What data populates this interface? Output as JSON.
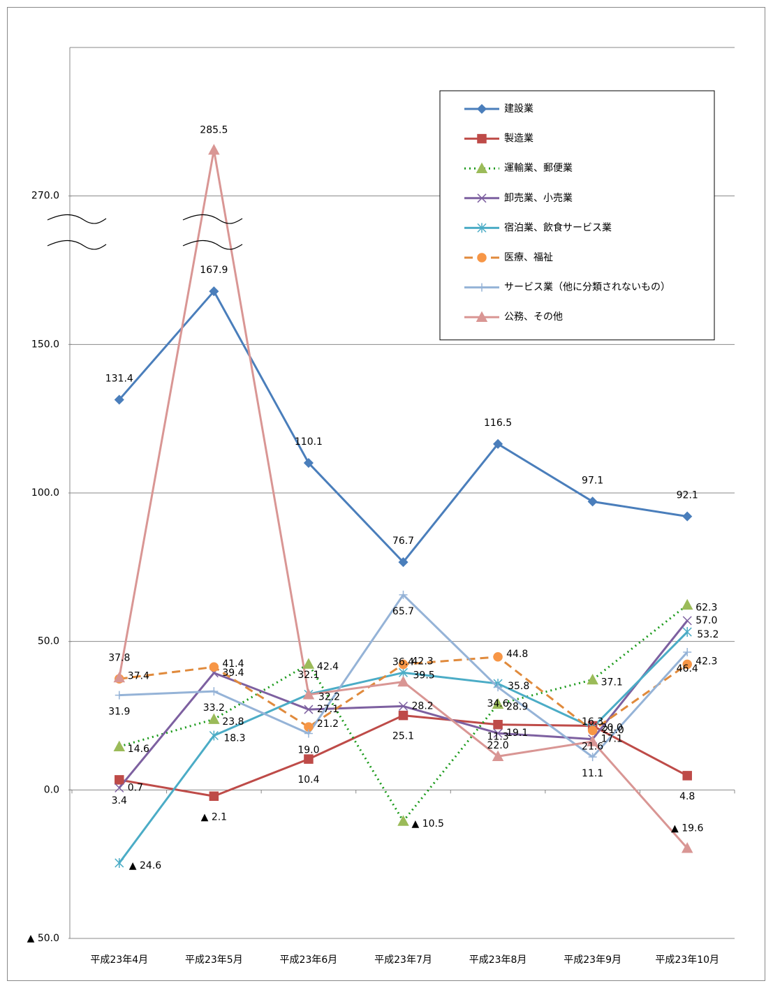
{
  "chart_data": {
    "type": "line",
    "categories": [
      "平成23年4月",
      "平成23年5月",
      "平成23年6月",
      "平成23年7月",
      "平成23年8月",
      "平成23年9月",
      "平成23年10月"
    ],
    "series": [
      {
        "name": "建設業",
        "color": "#4a7ebb",
        "marker": "diamond",
        "line_style": "solid",
        "values": [
          131.4,
          167.9,
          110.1,
          76.7,
          116.5,
          97.1,
          92.1
        ],
        "value_labels": [
          "131.4",
          "167.9",
          "110.1",
          "76.7",
          "116.5",
          "97.1",
          "92.1"
        ]
      },
      {
        "name": "製造業",
        "color": "#be4b48",
        "marker": "square",
        "line_style": "solid",
        "values": [
          3.4,
          -2.1,
          10.4,
          25.1,
          22.0,
          21.6,
          4.8
        ],
        "value_labels": [
          "3.4",
          "▲ 2.1",
          "10.4",
          "25.1",
          "22.0",
          "21.6",
          "4.8"
        ]
      },
      {
        "name": "運輸業、郵便業",
        "color": "#1a9a1a",
        "marker_color": "#9bbb59",
        "marker": "triangle",
        "line_style": "dotted",
        "values": [
          14.6,
          23.8,
          42.4,
          -10.5,
          28.9,
          37.1,
          62.3
        ],
        "value_labels": [
          "14.6",
          "23.8",
          "42.4",
          "▲ 10.5",
          "28.9",
          "37.1",
          "62.3"
        ]
      },
      {
        "name": "卸売業、小売業",
        "color": "#7d60a0",
        "marker": "x",
        "line_style": "solid",
        "values": [
          0.7,
          39.4,
          27.1,
          28.2,
          19.1,
          17.1,
          57.0
        ],
        "value_labels": [
          "0.7",
          "39.4",
          "27.1",
          "28.2",
          "19.1",
          "17.1",
          "57.0"
        ]
      },
      {
        "name": "宿泊業、飲食サービス業",
        "color": "#4bacc6",
        "marker": "asterisk",
        "line_style": "solid",
        "values": [
          -24.6,
          18.3,
          32.2,
          39.5,
          35.8,
          21.0,
          53.2
        ],
        "value_labels": [
          "▲ 24.6",
          "18.3",
          "32.2",
          "39.5",
          "35.8",
          "21.0",
          "53.2"
        ]
      },
      {
        "name": "医療、福祉",
        "color": "#e08a3c",
        "marker_color": "#f79646",
        "marker": "circle",
        "line_style": "dashed",
        "values": [
          37.4,
          41.4,
          21.2,
          42.3,
          44.8,
          20.0,
          42.3
        ],
        "value_labels": [
          "37.4",
          "41.4",
          "21.2",
          "42.3",
          "44.8",
          "20.0",
          "42.3"
        ]
      },
      {
        "name": "サービス業（他に分類されないもの）",
        "color": "#95b3d7",
        "marker": "plus",
        "line_style": "solid",
        "values": [
          31.9,
          33.2,
          19.0,
          65.7,
          34.6,
          11.1,
          46.4
        ],
        "value_labels": [
          "31.9",
          "33.2",
          "19.0",
          "65.7",
          "34.6",
          "11.1",
          "46.4"
        ]
      },
      {
        "name": "公務、その他",
        "color": "#d99694",
        "marker": "triangle",
        "line_style": "solid",
        "values": [
          37.8,
          285.5,
          32.1,
          36.4,
          11.3,
          16.3,
          -19.6
        ],
        "value_labels": [
          "37.8",
          "285.5",
          "32.1",
          "36.4",
          "11.3",
          "16.3",
          "▲ 19.6"
        ]
      }
    ],
    "ylim": [
      -50,
      320
    ],
    "ybreak": [
      180,
      250
    ],
    "yticks": [
      {
        "value": -50,
        "label": "▲ 50.0"
      },
      {
        "value": 0,
        "label": "0.0"
      },
      {
        "value": 50,
        "label": "50.0"
      },
      {
        "value": 100,
        "label": "100.0"
      },
      {
        "value": 150,
        "label": "150.0"
      },
      {
        "value": 270,
        "label": "270.0"
      }
    ],
    "grid": true,
    "legend": "upper right"
  }
}
